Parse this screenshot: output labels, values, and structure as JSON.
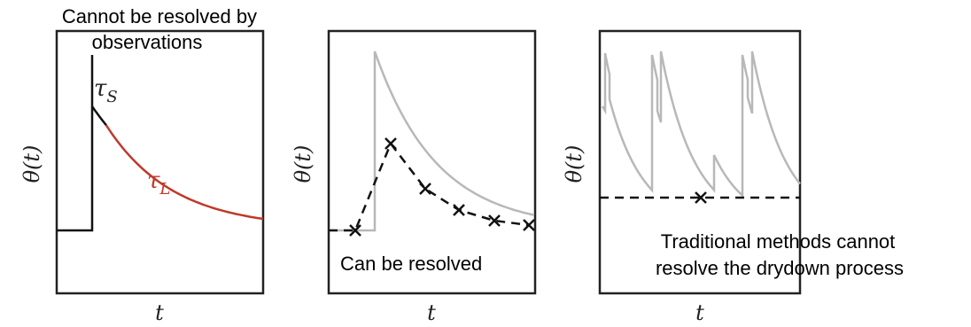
{
  "colors": {
    "frame": "#222222",
    "black_curve": "#111111",
    "red_curve": "#c0392b",
    "gray_curve": "#b8b8b8",
    "annotation_text": "#000000"
  },
  "panels": [
    {
      "ylabel": "θ(t)",
      "xlabel": "t",
      "annotations": {
        "title_line1": "Cannot be resolved by",
        "title_line2": "observations",
        "tau_s": "τ",
        "tau_s_sub": "S",
        "tau_l": "τ",
        "tau_l_sub": "L"
      }
    },
    {
      "ylabel": "θ(t)",
      "xlabel": "t",
      "annotations": {
        "caption": "Can be resolved"
      }
    },
    {
      "ylabel": "θ(t)",
      "xlabel": "t",
      "annotations": {
        "caption_line1": "Traditional methods cannot",
        "caption_line2": "resolve the drydown process"
      }
    }
  ]
}
